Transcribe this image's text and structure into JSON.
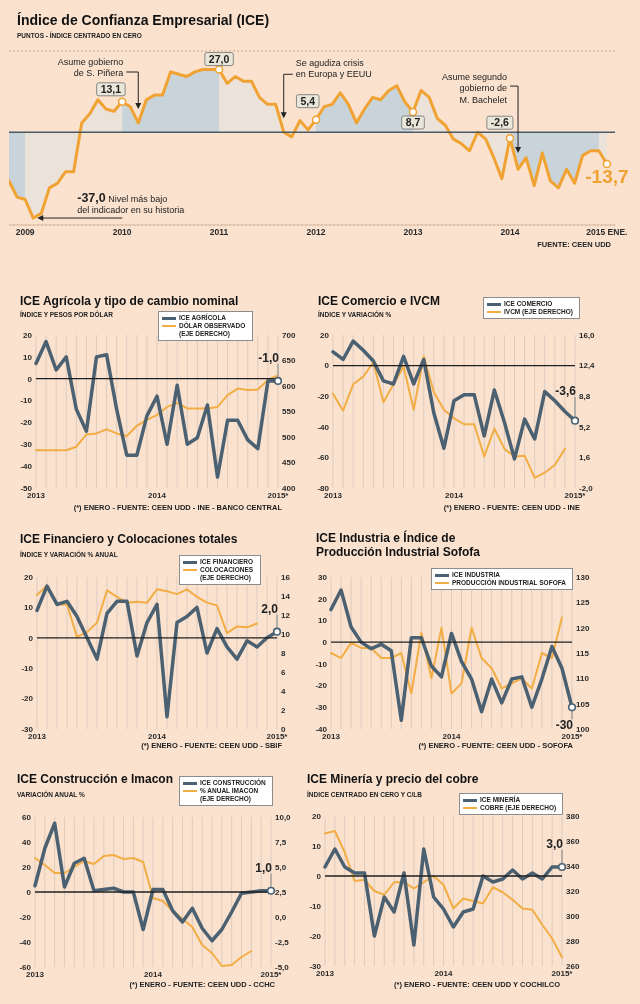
{
  "chart_data": [
    {
      "type": "area",
      "title": "Índice de Confianza Empresarial (ICE)",
      "subtitle": "PUNTOS - ÍNDICE CENTRADO EN CERO",
      "x": [
        "2008-11",
        "2008-12",
        "2009-01",
        "2009-02",
        "2009-03",
        "2009-04",
        "2009-05",
        "2009-06",
        "2009-07",
        "2009-08",
        "2009-09",
        "2009-10",
        "2009-11",
        "2009-12",
        "2010-01",
        "2010-02",
        "2010-03",
        "2010-04",
        "2010-05",
        "2010-06",
        "2010-07",
        "2010-08",
        "2010-09",
        "2010-10",
        "2010-11",
        "2010-12",
        "2011-01",
        "2011-02",
        "2011-03",
        "2011-04",
        "2011-05",
        "2011-06",
        "2011-07",
        "2011-08",
        "2011-09",
        "2011-10",
        "2011-11",
        "2011-12",
        "2012-01",
        "2012-02",
        "2012-03",
        "2012-04",
        "2012-05",
        "2012-06",
        "2012-07",
        "2012-08",
        "2012-09",
        "2012-10",
        "2012-11",
        "2012-12",
        "2013-01",
        "2013-02",
        "2013-03",
        "2013-04",
        "2013-05",
        "2013-06",
        "2013-07",
        "2013-08",
        "2013-09",
        "2013-10",
        "2013-11",
        "2013-12",
        "2014-01",
        "2014-02",
        "2014-03",
        "2014-04",
        "2014-05",
        "2014-06",
        "2014-07",
        "2014-08",
        "2014-09",
        "2014-10",
        "2014-11",
        "2014-12",
        "2015-01"
      ],
      "series": [
        {
          "color": "#f0a232",
          "values": [
            -21,
            -28,
            -29,
            -37,
            -35,
            -24,
            -22,
            -17,
            -17,
            4,
            8,
            14,
            10,
            9,
            13.1,
            11,
            4,
            14,
            16,
            16,
            26,
            25,
            24,
            26,
            27,
            27,
            27,
            21,
            24,
            22,
            22,
            15,
            12,
            12,
            0,
            -2,
            5,
            1,
            5.4,
            11,
            12,
            17,
            12,
            4,
            10,
            15,
            14,
            18,
            20,
            13,
            8.7,
            18,
            15,
            6,
            3,
            -3,
            -5,
            -8,
            0,
            -3,
            -11,
            -20,
            -2.6,
            -16,
            -11,
            -23,
            -9,
            -21,
            -24,
            -16,
            -22,
            -10,
            -8,
            -8,
            -13.7
          ],
          "value_labels": [
            null,
            null,
            null,
            null,
            null,
            null,
            null,
            null,
            null,
            null,
            null,
            null,
            null,
            null,
            "13,1",
            null,
            null,
            null,
            null,
            null,
            null,
            null,
            null,
            null,
            null,
            null,
            "27,0",
            null,
            null,
            null,
            null,
            null,
            null,
            null,
            null,
            null,
            null,
            null,
            "5,4",
            null,
            null,
            null,
            null,
            null,
            null,
            null,
            null,
            null,
            null,
            null,
            "8,7",
            null,
            null,
            null,
            null,
            null,
            null,
            null,
            null,
            null,
            null,
            null,
            "-2,6",
            null,
            null,
            null,
            null,
            null,
            null,
            null,
            null,
            null,
            null,
            null,
            "-13,7"
          ]
        }
      ],
      "xlim": [
        "2008-11",
        "2015-02"
      ],
      "xticks": [
        {
          "value": "2009-01",
          "label": "2009"
        },
        {
          "value": "2010-01",
          "label": "2010"
        },
        {
          "value": "2011-01",
          "label": "2011"
        },
        {
          "value": "2012-01",
          "label": "2012"
        },
        {
          "value": "2013-01",
          "label": "2013"
        },
        {
          "value": "2014-01",
          "label": "2014"
        },
        {
          "value": "2015-01",
          "label": "2015 ENE."
        }
      ],
      "ylim": [
        -40,
        35
      ],
      "grid": "y",
      "tick_labels": "x",
      "ref_lines": [
        {
          "axis": "y",
          "value": 0,
          "color": "#4b5963"
        }
      ],
      "bands": [
        {
          "axis": "x",
          "from": "2008-11",
          "to": "2009-01",
          "color": "#c8d3da"
        },
        {
          "axis": "x",
          "from": "2010-01",
          "to": "2011-01",
          "color": "#c8d3da"
        },
        {
          "axis": "x",
          "from": "2012-01",
          "to": "2013-01",
          "color": "#c8d3da"
        },
        {
          "axis": "x",
          "from": "2014-01",
          "to": "2014-12",
          "color": "#c8d3da"
        }
      ],
      "annotations": [
        {
          "text": "Asume gobierno de S. Piñera",
          "x": "2010-03",
          "y": 10
        },
        {
          "text": "Se agudiza crisis en Europa y EEUU",
          "x": "2011-09",
          "y": 6
        },
        {
          "text": "Asume segundo gobierno de M. Bachelet",
          "x": "2014-02",
          "y": -9
        },
        {
          "text": "-37,0 Nivel más bajo del indicador en su historia",
          "x": "2009-02",
          "y": -37
        },
        "FUENTE: CEEN UDD"
      ]
    },
    {
      "type": "line",
      "title": "ICE Agrícola y tipo de cambio nominal",
      "subtitle": "ÍNDICE Y PESOS POR DÓLAR",
      "categories": [
        "2013",
        null,
        null,
        null,
        null,
        null,
        null,
        null,
        null,
        null,
        null,
        null,
        "2014",
        null,
        null,
        null,
        null,
        null,
        null,
        null,
        null,
        null,
        null,
        null,
        "2015*"
      ],
      "series": [
        {
          "name": "ICE AGRÍCOLA",
          "color": "#4b6070",
          "values": [
            7,
            17,
            4,
            10,
            -14,
            -24,
            10,
            11,
            -14,
            -35,
            -35,
            -17,
            -8,
            -30,
            -3,
            -30,
            -27,
            -12,
            -45,
            -19,
            -19,
            -28,
            -32,
            -1,
            -1
          ],
          "value_labels": [
            null,
            null,
            null,
            null,
            null,
            null,
            null,
            null,
            null,
            null,
            null,
            null,
            null,
            null,
            null,
            null,
            null,
            null,
            null,
            null,
            null,
            null,
            null,
            null,
            "-1,0"
          ]
        },
        {
          "name": "DÓLAR OBSERVADO (EJE DERECHO)",
          "color": "#f2ae45",
          "axis": "y2",
          "values": [
            474,
            474,
            474,
            474,
            481,
            505,
            507,
            515,
            507,
            502,
            522,
            534,
            543,
            559,
            567,
            556,
            556,
            556,
            559,
            582,
            595,
            592,
            593,
            612,
            621
          ]
        }
      ],
      "ylim": [
        -50,
        20
      ],
      "yticks": [
        -50,
        -40,
        -30,
        -20,
        -10,
        0,
        10,
        20
      ],
      "y2lim": [
        400,
        700
      ],
      "y2ticks": [
        400,
        450,
        500,
        550,
        600,
        650,
        700
      ],
      "grid": "x",
      "legend": "top right",
      "ref_lines": [
        {
          "axis": "y",
          "value": 0,
          "color": "#1f1f1f"
        }
      ],
      "annotations": [
        "(*) ENERO - FUENTE: CEEN UDD - INE - BANCO CENTRAL"
      ]
    },
    {
      "type": "line",
      "title": "ICE Comercio e IVCM",
      "subtitle": "ÍNDICE Y VARIACIÓN %",
      "categories": [
        "2013",
        null,
        null,
        null,
        null,
        null,
        null,
        null,
        null,
        null,
        null,
        null,
        "2014",
        null,
        null,
        null,
        null,
        null,
        null,
        null,
        null,
        null,
        null,
        null,
        "2015*"
      ],
      "series": [
        {
          "name": "ICE COMERCIO",
          "color": "#4b6070",
          "values": [
            9,
            4,
            16,
            10,
            3,
            -10,
            -12,
            6,
            -12,
            4,
            -31,
            -54,
            -23,
            -19,
            -19,
            -46,
            -16,
            -37,
            -61,
            -35,
            -48,
            -17,
            -23,
            -30,
            -36
          ]
        },
        {
          "name": "IVCM (EJE DERECHO)",
          "color": "#f2ae45",
          "axis": "y2",
          "values": [
            9.1,
            7.1,
            10.2,
            11.1,
            12.8,
            8.1,
            10.2,
            12.3,
            7.2,
            13.5,
            9.3,
            7.2,
            6.2,
            5.5,
            5.5,
            1.7,
            5.0,
            2.6,
            1.7,
            1.8,
            -0.8,
            -0.2,
            0.7,
            2.6,
            null
          ]
        }
      ],
      "ylim": [
        -80,
        20
      ],
      "yticks": [
        -80,
        -60,
        -40,
        -20,
        0,
        20
      ],
      "y2lim": [
        -2,
        16
      ],
      "y2ticks": [
        {
          "value": -2,
          "label": "-2,0"
        },
        {
          "value": 1.6,
          "label": "1,6"
        },
        {
          "value": 5.2,
          "label": "5,2"
        },
        {
          "value": 8.8,
          "label": "8,8"
        },
        {
          "value": 12.4,
          "label": "12,4"
        },
        {
          "value": 16,
          "label": "16,0"
        }
      ],
      "grid": "x",
      "legend": "top right",
      "ref_lines": [
        {
          "axis": "y",
          "value": 0,
          "color": "#1f1f1f"
        }
      ],
      "annotations": [
        {
          "text": "-3,6",
          "x": "2015*",
          "y": -36
        },
        "(*) ENERO - FUENTE: CEEN UDD - INE"
      ]
    },
    {
      "type": "line",
      "title": "ICE Financiero y Colocaciones totales",
      "subtitle": "ÍNDICE Y VARIACIÓN % ANUAL",
      "categories": [
        "2013",
        null,
        null,
        null,
        null,
        null,
        null,
        null,
        null,
        null,
        null,
        null,
        "2014",
        null,
        null,
        null,
        null,
        null,
        null,
        null,
        null,
        null,
        null,
        null,
        "2015*"
      ],
      "series": [
        {
          "name": "ICE FINANCIERO",
          "color": "#4b6070",
          "values": [
            9,
            17,
            11,
            12,
            7,
            0,
            -7,
            8,
            12,
            12,
            -6,
            5,
            11,
            -26,
            5,
            7,
            10,
            -5,
            3,
            -3,
            -7,
            -1,
            -3,
            0,
            2
          ],
          "value_labels": [
            null,
            null,
            null,
            null,
            null,
            null,
            null,
            null,
            null,
            null,
            null,
            null,
            null,
            null,
            null,
            null,
            null,
            null,
            null,
            null,
            null,
            null,
            null,
            null,
            "2,0"
          ]
        },
        {
          "name": "COLOCACIONES (EJE DERECHO)",
          "color": "#f2ae45",
          "axis": "y2",
          "values": [
            14.1,
            15.1,
            13.1,
            13.1,
            9.7,
            10.2,
            11.2,
            14.6,
            13.9,
            13.3,
            13.4,
            13.3,
            14.7,
            14.5,
            14.2,
            14.7,
            13.9,
            13.3,
            13.0,
            10.1,
            10.8,
            10.7,
            11.1,
            null,
            null
          ]
        }
      ],
      "ylim": [
        -30,
        20
      ],
      "yticks": [
        -30,
        -20,
        -10,
        0,
        10,
        20
      ],
      "y2lim": [
        0,
        16
      ],
      "y2ticks": [
        0,
        2,
        4,
        6,
        8,
        10,
        12,
        14,
        16
      ],
      "grid": "x",
      "legend": "top right",
      "ref_lines": [
        {
          "axis": "y",
          "value": 0,
          "color": "#1f1f1f"
        }
      ],
      "annotations": [
        "(*) ENERO - FUENTE: CEEN UDD - SBIF"
      ]
    },
    {
      "type": "line",
      "title": "ICE Industria e Índice de Producción Industrial Sofofa",
      "categories": [
        "2013",
        null,
        null,
        null,
        null,
        null,
        null,
        null,
        null,
        null,
        null,
        null,
        "2014",
        null,
        null,
        null,
        null,
        null,
        null,
        null,
        null,
        null,
        null,
        null,
        "2015*"
      ],
      "series": [
        {
          "name": "ICE INDUSTRIA",
          "color": "#4b6070",
          "values": [
            15,
            24,
            7,
            0,
            -3,
            -1,
            -4,
            -36,
            2,
            2,
            -11,
            -16,
            4,
            -9,
            -17,
            -32,
            -17,
            -28,
            -17,
            -16,
            -30,
            -17,
            -2,
            -12,
            -30
          ],
          "value_labels": [
            null,
            null,
            null,
            null,
            null,
            null,
            null,
            null,
            null,
            null,
            null,
            null,
            null,
            null,
            null,
            null,
            null,
            null,
            null,
            null,
            null,
            null,
            null,
            null,
            "-30"
          ]
        },
        {
          "name": "PRODUCCIÓN INDUSTRIAL SOFOFA",
          "color": "#f2ae45",
          "axis": "y2",
          "values": [
            115,
            114,
            117,
            116,
            116,
            114,
            114,
            115,
            107,
            119,
            110,
            120,
            107,
            109,
            120,
            114,
            112,
            108,
            109,
            110,
            108,
            115,
            114,
            122,
            null
          ]
        }
      ],
      "ylim": [
        -40,
        30
      ],
      "yticks": [
        -40,
        -30,
        -20,
        -10,
        0,
        10,
        20,
        30
      ],
      "y2lim": [
        100,
        130
      ],
      "y2ticks": [
        100,
        105,
        110,
        115,
        120,
        125,
        130
      ],
      "grid": "x",
      "legend": "top right",
      "ref_lines": [
        {
          "axis": "y",
          "value": 0,
          "color": "#1f1f1f"
        }
      ],
      "annotations": [
        "(*) ENERO - FUENTE: CEEN UDD - SOFOFA"
      ]
    },
    {
      "type": "line",
      "title": "ICE Construcción e Imacon",
      "subtitle": "VARIACIÓN ANUAL %",
      "categories": [
        "2013",
        null,
        null,
        null,
        null,
        null,
        null,
        null,
        null,
        null,
        null,
        null,
        "2014",
        null,
        null,
        null,
        null,
        null,
        null,
        null,
        null,
        null,
        null,
        null,
        "2015*"
      ],
      "series": [
        {
          "name": "ICE CONSTRUCCIÓN",
          "color": "#4b6070",
          "values": [
            5,
            35,
            55,
            4,
            23,
            27,
            1,
            2,
            3,
            0,
            0,
            -30,
            2,
            2,
            -15,
            -24,
            -13,
            -29,
            -39,
            -30,
            -16,
            -1,
            0,
            1,
            1
          ],
          "value_labels": [
            null,
            null,
            null,
            null,
            null,
            null,
            null,
            null,
            null,
            null,
            null,
            null,
            null,
            null,
            null,
            null,
            null,
            null,
            null,
            null,
            null,
            null,
            null,
            null,
            "1,0"
          ]
        },
        {
          "name": "% ANUAL IMACON (EJE DERECHO)",
          "color": "#f2ae45",
          "axis": "y2",
          "values": [
            5.9,
            5.2,
            4.4,
            4.4,
            5.0,
            5.6,
            5.3,
            6.1,
            6.2,
            5.8,
            5.9,
            5.5,
            1.9,
            1.6,
            0.6,
            -0.2,
            -1.0,
            -2.8,
            -3.6,
            -4.9,
            -4.8,
            -4.0,
            -3.4,
            null,
            null
          ]
        }
      ],
      "ylim": [
        -60,
        60
      ],
      "yticks": [
        -60,
        -40,
        -20,
        0,
        20,
        40,
        60
      ],
      "y2lim": [
        -5,
        10
      ],
      "y2ticks": [
        {
          "value": -5,
          "label": "-5,0"
        },
        {
          "value": -2.5,
          "label": "-2,5"
        },
        {
          "value": 0,
          "label": "0,0"
        },
        {
          "value": 2.5,
          "label": "2,5"
        },
        {
          "value": 5,
          "label": "5,0"
        },
        {
          "value": 7.5,
          "label": "7,5"
        },
        {
          "value": 10,
          "label": "10,0"
        }
      ],
      "grid": "x",
      "legend": "top right",
      "ref_lines": [
        {
          "axis": "y",
          "value": 0,
          "color": "#1f1f1f"
        }
      ],
      "annotations": [
        "(*) ENERO - FUENTE: CEEN UDD - CCHC"
      ]
    },
    {
      "type": "line",
      "title": "ICE Minería y precio del cobre",
      "subtitle": "ÍNDICE CENTRADO EN CERO Y C/LB",
      "categories": [
        "2013",
        null,
        null,
        null,
        null,
        null,
        null,
        null,
        null,
        null,
        null,
        null,
        "2014",
        null,
        null,
        null,
        null,
        null,
        null,
        null,
        null,
        null,
        null,
        null,
        "2015*"
      ],
      "series": [
        {
          "name": "ICE MINERÍA",
          "color": "#4b6070",
          "values": [
            3,
            9,
            3,
            1,
            1,
            -20,
            -7,
            -12,
            1,
            -23,
            9,
            -7,
            -11,
            -17,
            -12,
            -11,
            0,
            -2,
            -1,
            2,
            -1,
            1,
            -1,
            3,
            3
          ],
          "value_labels": [
            null,
            null,
            null,
            null,
            null,
            null,
            null,
            null,
            null,
            null,
            null,
            null,
            null,
            null,
            null,
            null,
            null,
            null,
            null,
            null,
            null,
            null,
            null,
            null,
            "3,0"
          ]
        },
        {
          "name": "COBRE (EJE DERECHO)",
          "color": "#f2ae45",
          "axis": "y2",
          "values": [
            366,
            368,
            351,
            328,
            329,
            320,
            317,
            327,
            327,
            322,
            327,
            332,
            325,
            306,
            314,
            312,
            310,
            323,
            319,
            313,
            306,
            305,
            293,
            282,
            267
          ]
        }
      ],
      "ylim": [
        -30,
        20
      ],
      "yticks": [
        -30,
        -20,
        -10,
        0,
        10,
        20
      ],
      "y2lim": [
        260,
        380
      ],
      "y2ticks": [
        260,
        280,
        300,
        320,
        340,
        360,
        380
      ],
      "grid": "x",
      "legend": "top right",
      "ref_lines": [
        {
          "axis": "y",
          "value": 0,
          "color": "#1f1f1f"
        }
      ],
      "annotations": [
        "(*) ENERO - FUENTE: CEEN UDD Y COCHILCO"
      ]
    }
  ]
}
